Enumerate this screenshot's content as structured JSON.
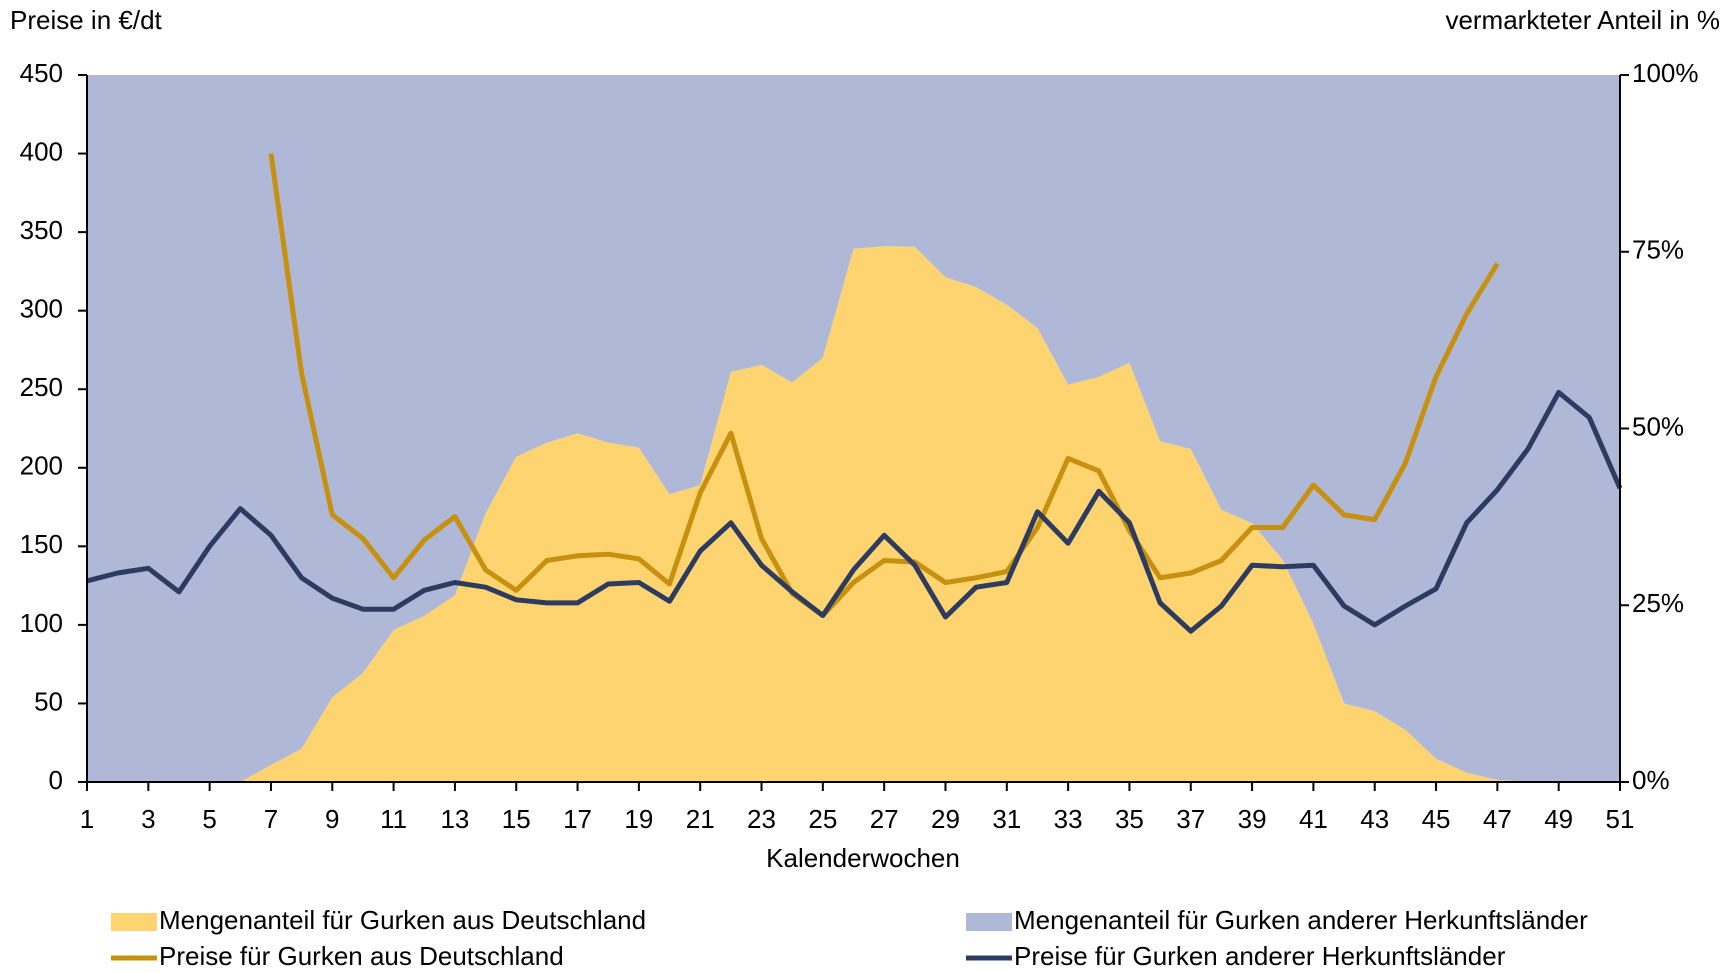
{
  "chart_data": {
    "type": "line",
    "y_label": "Preise in €/dt",
    "y2_label": "vermarkteter Anteil in %",
    "x_label": "Kalenderwochen",
    "x": [
      1,
      2,
      3,
      4,
      5,
      6,
      7,
      8,
      9,
      10,
      11,
      12,
      13,
      14,
      15,
      16,
      17,
      18,
      19,
      20,
      21,
      22,
      23,
      24,
      25,
      26,
      27,
      28,
      29,
      30,
      31,
      32,
      33,
      34,
      35,
      36,
      37,
      38,
      39,
      40,
      41,
      42,
      43,
      44,
      45,
      46,
      47,
      48,
      49,
      50,
      51
    ],
    "xlim": [
      1,
      51
    ],
    "xticks": [
      1,
      3,
      5,
      7,
      9,
      11,
      13,
      15,
      17,
      19,
      21,
      23,
      25,
      27,
      29,
      31,
      33,
      35,
      37,
      39,
      41,
      43,
      45,
      47,
      49,
      51
    ],
    "ylim": [
      0,
      450
    ],
    "yticks": [
      0,
      50,
      100,
      150,
      200,
      250,
      300,
      350,
      400,
      450
    ],
    "y2lim": [
      0,
      100
    ],
    "y2ticks": [
      {
        "value": 0,
        "label": "0%"
      },
      {
        "value": 25,
        "label": "25%"
      },
      {
        "value": 50,
        "label": "50%"
      },
      {
        "value": 75,
        "label": "75%"
      },
      {
        "value": 100,
        "label": "100%"
      }
    ],
    "series": [
      {
        "name": "Mengenanteil für Gurken aus Deutschland",
        "color": "#fdd470",
        "style": "area",
        "axis": "y2",
        "values": [
          0,
          0,
          0,
          0,
          0,
          0,
          2.4,
          4.7,
          12,
          15.4,
          21.5,
          23.5,
          26.4,
          38,
          46,
          48,
          49.3,
          48,
          47.3,
          40.7,
          42,
          58,
          59,
          56.5,
          60,
          75.4,
          75.8,
          75.7,
          71.4,
          70,
          67.5,
          64.2,
          56.2,
          57.3,
          59.3,
          48.2,
          47.1,
          38.5,
          36.6,
          31.4,
          22.4,
          11.1,
          10,
          7.4,
          3.3,
          1.3,
          0.3,
          0,
          0,
          0,
          0
        ]
      },
      {
        "name": "Mengenanteil für Gurken anderer Herkunftsländer",
        "color": "#afb8d6",
        "style": "area",
        "axis": "y2",
        "values": [
          100,
          100,
          100,
          100,
          100,
          100,
          97.6,
          95.3,
          88,
          84.6,
          78.5,
          76.5,
          73.6,
          62,
          54,
          52,
          50.7,
          52,
          52.7,
          59.3,
          58,
          42,
          41,
          43.5,
          40,
          24.6,
          24.2,
          24.3,
          28.6,
          30,
          32.5,
          35.8,
          43.8,
          42.7,
          40.7,
          51.8,
          52.9,
          61.5,
          63.4,
          68.6,
          77.6,
          88.9,
          90,
          92.6,
          96.7,
          98.7,
          99.7,
          100,
          100,
          100,
          100
        ]
      },
      {
        "name": "Preise für Gurken aus Deutschland",
        "color": "#c8900f",
        "style": "line",
        "values": [
          null,
          null,
          null,
          null,
          null,
          null,
          400,
          260,
          170,
          155,
          130,
          154,
          169,
          135,
          122,
          141,
          144,
          145,
          142,
          126,
          184,
          222,
          155,
          120,
          106,
          127,
          141,
          140,
          127,
          130,
          134,
          162,
          206,
          198,
          160,
          130,
          133,
          141,
          162,
          162,
          189,
          170,
          167,
          203,
          258,
          298,
          330,
          null,
          null,
          null,
          null
        ]
      },
      {
        "name": "Preise für Gurken anderer Herkunftsländer",
        "color": "#2e3b61",
        "style": "line",
        "values": [
          128,
          133,
          136,
          121,
          150,
          174,
          157,
          130,
          117,
          110,
          110,
          122,
          127,
          124,
          116,
          114,
          114,
          126,
          127,
          115,
          147,
          165,
          138,
          121,
          106,
          135,
          157,
          138,
          105,
          124,
          127,
          172,
          152,
          185,
          165,
          114,
          96,
          112,
          138,
          137,
          138,
          112,
          100,
          112,
          123,
          165,
          186,
          212,
          248,
          232,
          187
        ]
      }
    ]
  }
}
